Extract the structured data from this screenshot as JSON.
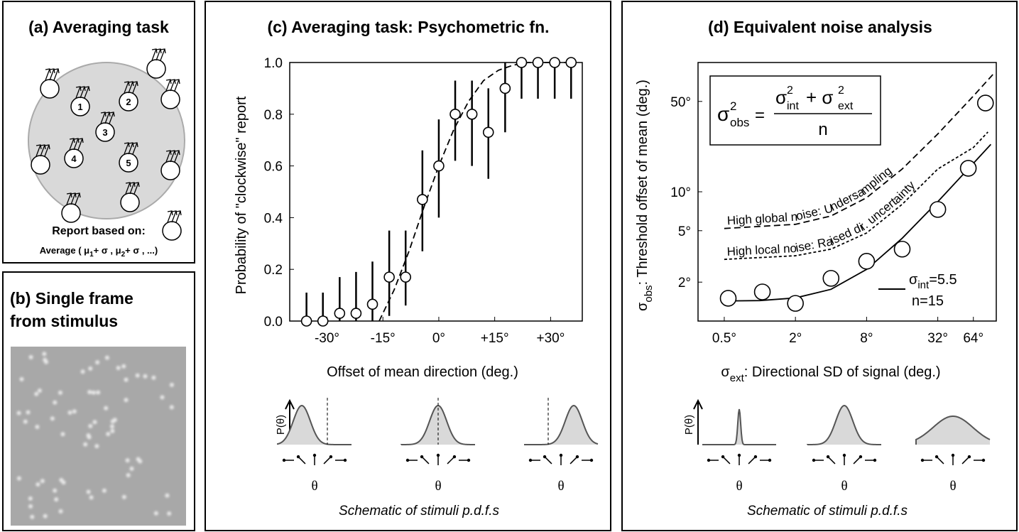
{
  "diagrams": {
    "a": {
      "title": "(a) Averaging task",
      "labels": [
        "1",
        "2",
        "3",
        "4",
        "5"
      ],
      "caption": "Report based on:",
      "formula": [
        "Average ( μ",
        "1",
        "+ σ  ,  μ",
        "2",
        "+ σ  , ...)"
      ]
    },
    "b": {
      "title_lines": [
        "(b) Single frame",
        "from stimulus"
      ]
    }
  },
  "chart_data": [
    {
      "type": "scatter",
      "title": "(c) Averaging task: Psychometric fn.",
      "xlabel": "Offset of mean direction (deg.)",
      "ylabel": "Probability of  \"clockwise\" report",
      "x": [
        -35.5,
        -31.1,
        -26.6,
        -22.2,
        -17.8,
        -13.3,
        -8.9,
        -4.4,
        0,
        4.4,
        8.9,
        13.3,
        17.8,
        22.2,
        26.6,
        31.1,
        35.5
      ],
      "values": [
        0,
        0,
        0.03,
        0.03,
        0.065,
        0.17,
        0.17,
        0.47,
        0.6,
        0.8,
        0.8,
        0.73,
        0.9,
        1,
        1,
        1,
        1
      ],
      "error_low": [
        0,
        0,
        0,
        0,
        0,
        0.02,
        0.06,
        0.27,
        0.4,
        0.62,
        0.6,
        0.55,
        0.73,
        0.86,
        0.86,
        0.86,
        0.86
      ],
      "error_high": [
        0.11,
        0.11,
        0.17,
        0.19,
        0.23,
        0.35,
        0.35,
        0.66,
        0.78,
        0.93,
        0.93,
        0.9,
        1,
        1,
        1,
        1,
        1
      ],
      "curves": [
        {
          "dash": "dashed",
          "x": [
            -16,
            -12,
            -8,
            -4,
            0,
            4,
            8,
            12,
            16,
            20,
            24,
            36
          ],
          "y": [
            0,
            0.12,
            0.27,
            0.44,
            0.6,
            0.74,
            0.85,
            0.93,
            0.97,
            0.99,
            1,
            1
          ]
        }
      ],
      "xlim": [
        -40,
        38.5
      ],
      "ylim": [
        0,
        1
      ],
      "xticks": [
        {
          "value": -30,
          "label": "-30°"
        },
        {
          "value": -15,
          "label": "-15°"
        },
        {
          "value": 0,
          "label": "0°"
        },
        {
          "value": 15,
          "label": "+15°"
        },
        {
          "value": 30,
          "label": "+30°"
        }
      ],
      "yticks": [
        {
          "value": 0,
          "label": "0.0"
        },
        0.2,
        0.4,
        0.6,
        0.8,
        {
          "value": 1,
          "label": "1.0"
        }
      ],
      "schematic": {
        "ylabel": "P(θ)",
        "xlabel": "θ",
        "caption": "Schematic of stimuli p.d.f.s"
      }
    },
    {
      "type": "scatter",
      "title": "(d) Equivalent noise analysis",
      "xlabel": {
        "symbol": "σ",
        "sub": "ext",
        "text": ": Directional SD of signal (deg.)"
      },
      "ylabel": {
        "symbol": "σ",
        "sub": "obs",
        "text": ": Threshold offset of mean (deg.)"
      },
      "xscale": "log",
      "yscale": "log",
      "x": [
        0.54,
        1.05,
        2,
        4,
        8,
        16,
        32,
        58,
        81
      ],
      "values": [
        1.5,
        1.68,
        1.37,
        2.14,
        2.9,
        3.6,
        7.3,
        15.2,
        48.6
      ],
      "curves": [
        {
          "dash": "dashed",
          "label": "High global noise: Undersampling",
          "x": [
            0.5,
            2,
            4,
            8,
            16,
            32,
            64,
            95
          ],
          "y": [
            5.2,
            5.6,
            6.5,
            9,
            15,
            28,
            55,
            82
          ]
        },
        {
          "dash": "dotted",
          "label": "High local noise: Raised dir. uncertainty",
          "x": [
            0.5,
            2,
            4,
            8,
            16,
            32,
            64,
            85
          ],
          "y": [
            3,
            3.2,
            3.6,
            4.8,
            8,
            15,
            22,
            29
          ]
        },
        {
          "dash": "solid",
          "legend": {
            "symbol": "σ",
            "sub": "int",
            "text": "=5.5",
            "line2": "n=15"
          },
          "x": [
            0.5,
            1,
            2,
            4,
            8,
            16,
            32,
            64,
            90
          ],
          "y": [
            1.43,
            1.44,
            1.51,
            1.76,
            2.51,
            4.37,
            8.38,
            16.59,
            23.28
          ]
        }
      ],
      "equation": {
        "lhs": "σ",
        "lhs_sup": "2",
        "lhs_sub": "obs",
        "eq": "=",
        "t1": "σ",
        "t1_sup": "2",
        "t1_sub": "int",
        "plus": "+ σ",
        "t2_sup": "2",
        "t2_sub": "ext",
        "den": "n"
      },
      "xlim": [
        0.3,
        100
      ],
      "ylim": [
        1,
        100
      ],
      "xticks": [
        {
          "value": 0.5,
          "label": "0.5°"
        },
        {
          "value": 2,
          "label": "2°"
        },
        {
          "value": 8,
          "label": "8°"
        },
        {
          "value": 32,
          "label": "32°"
        },
        {
          "value": 64,
          "label": "64°"
        }
      ],
      "yticks": [
        {
          "value": 2,
          "label": "2°"
        },
        {
          "value": 5,
          "label": "5°"
        },
        {
          "value": 10,
          "label": "10°"
        },
        {
          "value": 50,
          "label": "50°"
        }
      ],
      "schematic": {
        "ylabel": "P(θ)",
        "xlabel": "θ",
        "caption": "Schematic of stimuli p.d.f.s"
      }
    }
  ]
}
